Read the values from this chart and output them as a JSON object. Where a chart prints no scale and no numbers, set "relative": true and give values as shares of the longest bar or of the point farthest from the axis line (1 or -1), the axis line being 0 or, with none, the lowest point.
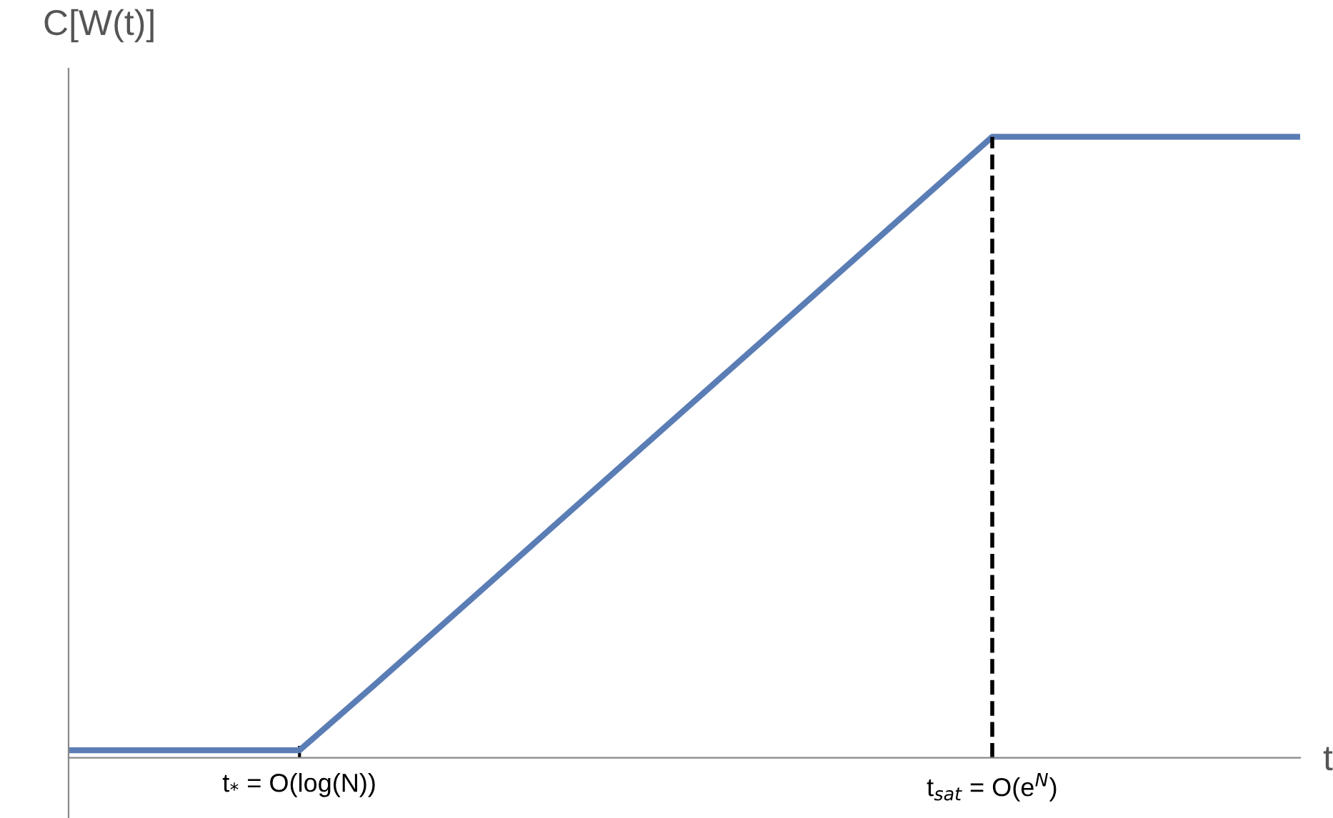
{
  "chart_data": {
    "type": "line",
    "relative": true,
    "ylabel": "C[W(t)]",
    "xlabel": "t",
    "categories": [
      null,
      null,
      null,
      "t$_{*}$ = O(log(N))",
      null,
      null,
      null,
      null,
      null,
      null,
      null,
      null,
      "t$_{sat}$ = O(e$^{N}$)",
      null,
      null,
      null,
      null
    ],
    "series": [
      {
        "color": "#5b7db5",
        "values": [
          0.012,
          0.012,
          0.012,
          0.012,
          0.12,
          0.23,
          0.34,
          0.45,
          0.56,
          0.67,
          0.78,
          0.89,
          1,
          1,
          1,
          1,
          1
        ]
      }
    ],
    "ref_lines": [
      {
        "axis": "x",
        "value": "t$_{sat}$ = O(e$^{N}$)",
        "color": "#000000",
        "line_style": "dashed"
      }
    ],
    "marker": "none",
    "line_style": "solid"
  }
}
